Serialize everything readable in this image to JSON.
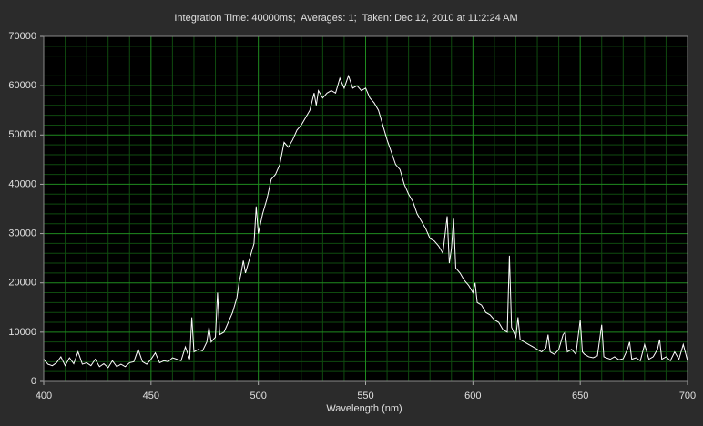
{
  "chart_data": {
    "type": "line",
    "title": "Integration Time: 40000ms;  Averages: 1;  Taken: Dec 12, 2010 at 11:2:24 AM",
    "x_label": "Wavelength (nm)",
    "color": "#ffffff",
    "grid": true,
    "xlim": [
      400,
      700
    ],
    "xticks": [
      400,
      450,
      500,
      550,
      600,
      650,
      700
    ],
    "ylim": [
      0,
      70000
    ],
    "yticks": [
      0,
      10000,
      20000,
      30000,
      40000,
      50000,
      60000,
      70000
    ],
    "x": [
      400,
      402,
      404,
      406,
      408,
      410,
      412,
      414,
      416,
      418,
      420,
      422,
      424,
      426,
      428,
      430,
      432,
      434,
      436,
      438,
      440,
      442,
      444,
      446,
      448,
      450,
      452,
      454,
      456,
      458,
      460,
      462,
      464,
      466,
      468,
      469,
      470,
      472,
      474,
      476,
      477,
      478,
      480,
      481,
      482,
      484,
      486,
      488,
      490,
      491,
      492,
      493,
      494,
      496,
      498,
      499,
      500,
      502,
      504,
      506,
      508,
      510,
      512,
      514,
      516,
      518,
      520,
      522,
      524,
      526,
      527,
      528,
      530,
      532,
      534,
      536,
      538,
      540,
      542,
      544,
      546,
      548,
      550,
      552,
      554,
      556,
      558,
      560,
      562,
      564,
      566,
      568,
      570,
      572,
      574,
      576,
      578,
      580,
      582,
      584,
      586,
      588,
      589,
      590,
      591,
      592,
      594,
      596,
      598,
      600,
      601,
      602,
      604,
      606,
      608,
      610,
      612,
      614,
      616,
      617,
      618,
      620,
      621,
      622,
      624,
      626,
      628,
      630,
      632,
      634,
      635,
      636,
      638,
      640,
      642,
      643,
      644,
      646,
      648,
      650,
      651,
      652,
      654,
      656,
      658,
      660,
      661,
      662,
      664,
      666,
      668,
      670,
      672,
      673,
      674,
      676,
      678,
      680,
      682,
      684,
      686,
      687,
      688,
      690,
      692,
      694,
      696,
      698,
      700
    ],
    "values": [
      4500,
      3500,
      3200,
      3800,
      5000,
      3200,
      4800,
      3600,
      6000,
      3500,
      3800,
      3200,
      4500,
      3000,
      3600,
      2800,
      4200,
      3000,
      3500,
      3000,
      3800,
      4000,
      6500,
      4000,
      3500,
      4500,
      5800,
      3800,
      4200,
      4000,
      4800,
      4500,
      4200,
      7000,
      4500,
      13000,
      6000,
      6500,
      6200,
      8000,
      11000,
      8000,
      9000,
      18000,
      9500,
      10000,
      12000,
      14000,
      17000,
      20000,
      22000,
      24500,
      22000,
      25000,
      28000,
      35500,
      30000,
      34000,
      37000,
      41000,
      42000,
      44000,
      48500,
      47500,
      49000,
      51000,
      52000,
      53500,
      55000,
      58500,
      56000,
      59000,
      57500,
      58500,
      59000,
      58500,
      61500,
      59500,
      62000,
      59500,
      60000,
      59000,
      59500,
      57500,
      56500,
      55000,
      52000,
      49000,
      46500,
      44000,
      43000,
      40000,
      38000,
      36500,
      34000,
      32500,
      31000,
      29000,
      28500,
      27500,
      26000,
      33500,
      24000,
      27000,
      33000,
      23000,
      22000,
      20500,
      19500,
      18000,
      20000,
      16000,
      15500,
      14000,
      13500,
      12500,
      12000,
      10500,
      10000,
      25500,
      11000,
      9000,
      13000,
      8500,
      8000,
      7500,
      7000,
      6500,
      6000,
      6800,
      9500,
      6000,
      5500,
      6500,
      9500,
      10000,
      6000,
      6500,
      5500,
      12500,
      6000,
      5500,
      5000,
      4800,
      5200,
      11500,
      5000,
      4800,
      4500,
      5000,
      4400,
      4600,
      6500,
      8000,
      4500,
      4800,
      4200,
      7500,
      4500,
      5000,
      6500,
      8500,
      4500,
      5000,
      4200,
      6000,
      4500,
      7500,
      4200
    ]
  }
}
